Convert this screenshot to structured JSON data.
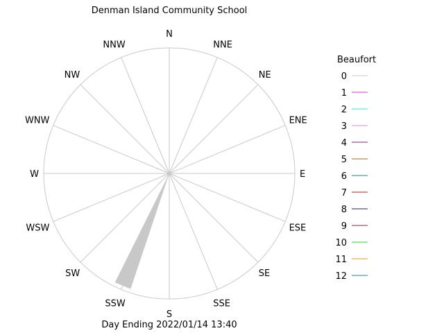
{
  "title": "Denman Island Community School",
  "caption": "Day Ending 2022/01/14 13:40",
  "chart_data": {
    "type": "wind-rose",
    "title": "Denman Island Community School",
    "footer": "Day Ending 2022/01/14 13:40",
    "directions": [
      "N",
      "NNE",
      "NE",
      "ENE",
      "E",
      "ESE",
      "SE",
      "SSE",
      "S",
      "SSW",
      "SW",
      "WSW",
      "W",
      "WNW",
      "NW",
      "NNW"
    ],
    "legend": {
      "title": "Beaufort",
      "position": "right",
      "entries": [
        {
          "label": "0",
          "color": "#c8c8c8"
        },
        {
          "label": "1",
          "color": "#cc33cc"
        },
        {
          "label": "2",
          "color": "#33dddd"
        },
        {
          "label": "3",
          "color": "#dd88cc"
        },
        {
          "label": "4",
          "color": "#882288"
        },
        {
          "label": "5",
          "color": "#aa6622"
        },
        {
          "label": "6",
          "color": "#118888"
        },
        {
          "label": "7",
          "color": "#aa2222"
        },
        {
          "label": "8",
          "color": "#222266"
        },
        {
          "label": "9",
          "color": "#aa2233"
        },
        {
          "label": "10",
          "color": "#22dd22"
        },
        {
          "label": "11",
          "color": "#dd9922"
        },
        {
          "label": "12",
          "color": "#118899"
        }
      ]
    },
    "series": [
      {
        "direction": "SSW",
        "beaufort": "0",
        "value": 1.0
      }
    ],
    "grid": true
  }
}
